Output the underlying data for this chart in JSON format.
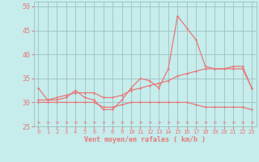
{
  "xlabel": "Vent moyen/en rafales ( km/h )",
  "xlim": [
    -0.5,
    23.5
  ],
  "ylim": [
    25,
    51
  ],
  "yticks": [
    25,
    30,
    35,
    40,
    45,
    50
  ],
  "xticks": [
    0,
    1,
    2,
    3,
    4,
    5,
    6,
    7,
    8,
    9,
    10,
    11,
    12,
    13,
    14,
    15,
    16,
    17,
    18,
    19,
    20,
    21,
    22,
    23
  ],
  "bg_color": "#c6ecec",
  "line_color": "#e87878",
  "grid_color": "#9ec0c0",
  "line1_x": [
    0,
    1,
    2,
    3,
    4,
    5,
    6,
    7,
    8,
    9,
    10,
    11,
    12,
    13,
    14,
    15,
    16,
    17,
    18,
    19,
    20,
    21,
    22,
    23
  ],
  "line1_y": [
    33,
    30.5,
    30.5,
    31,
    32.5,
    31,
    30.5,
    28.5,
    28.5,
    30.5,
    33,
    35,
    34.5,
    33,
    37,
    48,
    45.5,
    43,
    37.5,
    37,
    37,
    37.5,
    37.5,
    33
  ],
  "line2_x": [
    0,
    1,
    2,
    3,
    4,
    5,
    6,
    7,
    8,
    9,
    10,
    11,
    12,
    13,
    14,
    15,
    16,
    17,
    18,
    19,
    20,
    21,
    22,
    23
  ],
  "line2_y": [
    30,
    30,
    30,
    30,
    30,
    30,
    30,
    29,
    29,
    29.5,
    30,
    30,
    30,
    30,
    30,
    30,
    30,
    29.5,
    29,
    29,
    29,
    29,
    29,
    28.5
  ],
  "line3_x": [
    0,
    1,
    2,
    3,
    4,
    5,
    6,
    7,
    8,
    9,
    10,
    11,
    12,
    13,
    14,
    15,
    16,
    17,
    18,
    19,
    20,
    21,
    22,
    23
  ],
  "line3_y": [
    30.5,
    30.5,
    31,
    31.5,
    32,
    32,
    32,
    31,
    31,
    31.5,
    32.5,
    33,
    33.5,
    34,
    34.5,
    35.5,
    36,
    36.5,
    37,
    37,
    37,
    37,
    37,
    33
  ]
}
